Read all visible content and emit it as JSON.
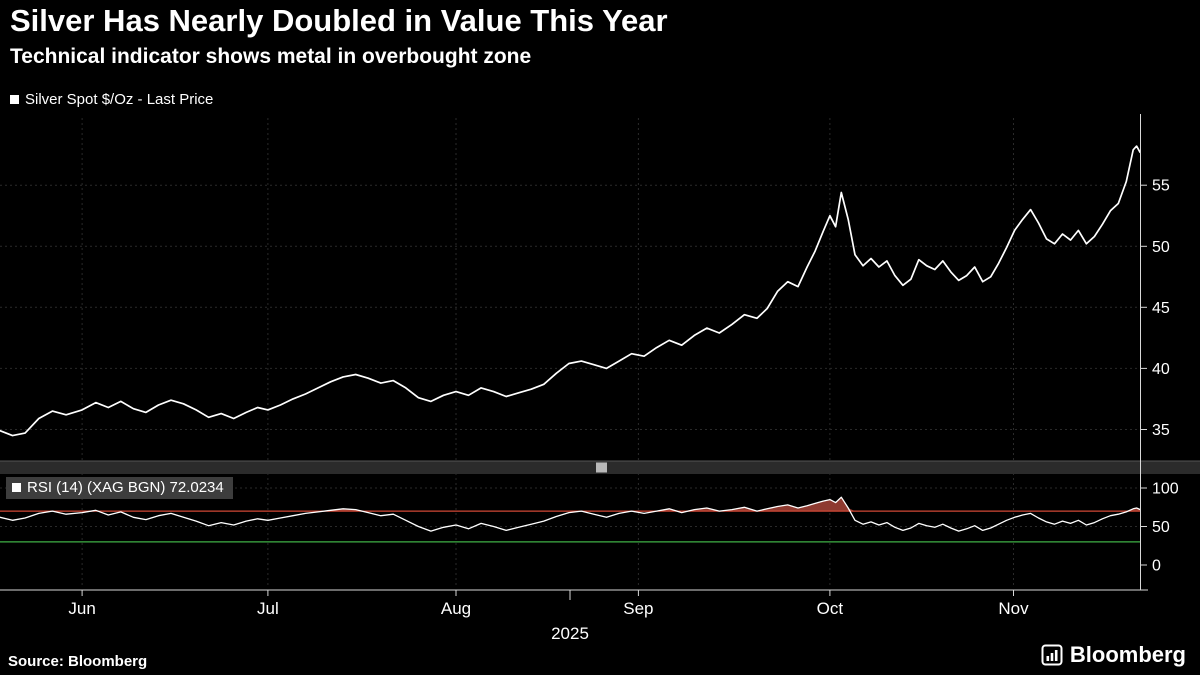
{
  "header": {
    "title": "Silver Has Nearly Doubled in Value This Year",
    "subtitle": "Technical indicator shows metal in overbought zone"
  },
  "legends": {
    "main": "Silver Spot $/Oz - Last Price",
    "rsi": "RSI (14) (XAG BGN) 72.0234"
  },
  "footer": {
    "source": "Source: Bloomberg",
    "brand": "Bloomberg"
  },
  "colors": {
    "background": "#000000",
    "line": "#ffffff",
    "grid": "#2a2a2a",
    "axis": "#d9d9d9",
    "panel_divider": "#2b2b2b",
    "legend_box": "#3d3d3d"
  },
  "chart_data": [
    {
      "type": "line",
      "title": "Silver Spot $/Oz - Last Price",
      "ylabel": "",
      "ylim": [
        32.5,
        60.5
      ],
      "yticks": [
        35,
        40,
        45,
        50,
        55
      ],
      "month_ticks": [
        {
          "label": "Jun",
          "t": 7.2
        },
        {
          "label": "Jul",
          "t": 23.5
        },
        {
          "label": "Aug",
          "t": 40.0
        },
        {
          "label": "Sep",
          "t": 56.0
        },
        {
          "label": "Oct",
          "t": 72.8
        },
        {
          "label": "Nov",
          "t": 88.9
        }
      ],
      "year_label": {
        "label": "2025",
        "t": 50
      },
      "x": [
        0,
        1.1,
        2.2,
        3.4,
        4.6,
        5.8,
        7.2,
        8.4,
        9.5,
        10.6,
        11.7,
        12.8,
        13.9,
        15,
        16.1,
        17.2,
        18.3,
        19.4,
        20.5,
        21.6,
        22.6,
        23.5,
        24.6,
        25.7,
        26.8,
        27.9,
        29,
        30.1,
        31.2,
        32.3,
        33.4,
        34.5,
        35.6,
        36.7,
        37.8,
        38.9,
        40,
        41.1,
        42.2,
        43.3,
        44.4,
        45.5,
        46.6,
        47.7,
        48.8,
        49.9,
        51,
        52.1,
        53.2,
        54.3,
        55.4,
        56.5,
        57.6,
        58.7,
        59.8,
        60.9,
        62,
        63.1,
        64.2,
        65.3,
        66.4,
        67.3,
        68.2,
        69.1,
        70,
        70.8,
        71.5,
        72.2,
        72.8,
        73.3,
        73.8,
        74.4,
        75,
        75.7,
        76.4,
        77.1,
        77.8,
        78.5,
        79.2,
        79.9,
        80.6,
        81.3,
        82,
        82.7,
        83.4,
        84.1,
        84.8,
        85.5,
        86.2,
        86.9,
        87.6,
        88.3,
        89,
        89.7,
        90.4,
        91.1,
        91.8,
        92.5,
        93.2,
        93.9,
        94.6,
        95.3,
        96,
        96.7,
        97.4,
        98.1,
        98.8,
        99.4,
        99.7,
        100
      ],
      "series": [
        {
          "name": "Silver Spot $/Oz - Last Price",
          "color": "#ffffff",
          "values": [
            34.9,
            34.5,
            34.7,
            35.9,
            36.5,
            36.2,
            36.6,
            37.2,
            36.8,
            37.3,
            36.7,
            36.4,
            37,
            37.4,
            37.1,
            36.6,
            36,
            36.3,
            35.9,
            36.4,
            36.8,
            36.6,
            37,
            37.5,
            37.9,
            38.4,
            38.9,
            39.3,
            39.5,
            39.2,
            38.8,
            39,
            38.4,
            37.6,
            37.3,
            37.8,
            38.1,
            37.8,
            38.4,
            38.1,
            37.7,
            38,
            38.3,
            38.7,
            39.6,
            40.4,
            40.6,
            40.3,
            40,
            40.6,
            41.2,
            41,
            41.7,
            42.3,
            41.9,
            42.7,
            43.3,
            42.9,
            43.6,
            44.4,
            44.1,
            44.9,
            46.3,
            47.1,
            46.7,
            48.3,
            49.6,
            51.2,
            52.5,
            51.6,
            54.4,
            52.2,
            49.3,
            48.4,
            49,
            48.3,
            48.8,
            47.6,
            46.8,
            47.3,
            48.9,
            48.4,
            48.1,
            48.8,
            47.9,
            47.2,
            47.6,
            48.3,
            47.1,
            47.5,
            48.6,
            49.9,
            51.3,
            52.2,
            53,
            51.9,
            50.6,
            50.2,
            51,
            50.5,
            51.3,
            50.2,
            50.8,
            51.8,
            52.9,
            53.5,
            55.3,
            57.9,
            58.2,
            57.7
          ]
        }
      ]
    },
    {
      "type": "line",
      "title": "RSI (14) (XAG BGN)",
      "last_value": 72.0234,
      "ylim": [
        0,
        100
      ],
      "yticks": [
        0,
        50,
        100
      ],
      "overbought": {
        "value": 70,
        "color": "#d14836",
        "fill": "#8e3a30"
      },
      "oversold": {
        "value": 30,
        "color": "#3faf46"
      },
      "x": [
        0,
        1.1,
        2.2,
        3.4,
        4.6,
        5.8,
        7.2,
        8.4,
        9.5,
        10.6,
        11.7,
        12.8,
        13.9,
        15,
        16.1,
        17.2,
        18.3,
        19.4,
        20.5,
        21.6,
        22.6,
        23.5,
        24.6,
        25.7,
        26.8,
        27.9,
        29,
        30.1,
        31.2,
        32.3,
        33.4,
        34.5,
        35.6,
        36.7,
        37.8,
        38.9,
        40,
        41.1,
        42.2,
        43.3,
        44.4,
        45.5,
        46.6,
        47.7,
        48.8,
        49.9,
        51,
        52.1,
        53.2,
        54.3,
        55.4,
        56.5,
        57.6,
        58.7,
        59.8,
        60.9,
        62,
        63.1,
        64.2,
        65.3,
        66.4,
        67.3,
        68.2,
        69.1,
        70,
        70.8,
        71.5,
        72.2,
        72.8,
        73.3,
        73.8,
        74.4,
        75,
        75.7,
        76.4,
        77.1,
        77.8,
        78.5,
        79.2,
        79.9,
        80.6,
        81.3,
        82,
        82.7,
        83.4,
        84.1,
        84.8,
        85.5,
        86.2,
        86.9,
        87.6,
        88.3,
        89,
        89.7,
        90.4,
        91.1,
        91.8,
        92.5,
        93.2,
        93.9,
        94.6,
        95.3,
        96,
        96.7,
        97.4,
        98.1,
        98.8,
        99.4,
        99.7,
        100
      ],
      "series": [
        {
          "name": "RSI (14) (XAG BGN)",
          "color": "#ffffff",
          "values": [
            62,
            58,
            61,
            67,
            70,
            66,
            68,
            71,
            65,
            69,
            62,
            59,
            64,
            67,
            62,
            57,
            51,
            55,
            52,
            57,
            60,
            58,
            61,
            64,
            67,
            69,
            71,
            73,
            72,
            68,
            64,
            66,
            58,
            50,
            44,
            49,
            52,
            47,
            54,
            50,
            45,
            49,
            53,
            57,
            63,
            68,
            70,
            66,
            62,
            67,
            70,
            67,
            70,
            73,
            68,
            72,
            74,
            70,
            72,
            75,
            70,
            73,
            76,
            78,
            74,
            77,
            80,
            83,
            85,
            81,
            88,
            74,
            58,
            53,
            56,
            52,
            55,
            49,
            45,
            48,
            54,
            51,
            49,
            53,
            48,
            44,
            47,
            51,
            45,
            48,
            53,
            58,
            62,
            65,
            67,
            61,
            56,
            53,
            57,
            54,
            58,
            52,
            55,
            60,
            64,
            66,
            69,
            73,
            74,
            72.02
          ]
        }
      ]
    }
  ]
}
